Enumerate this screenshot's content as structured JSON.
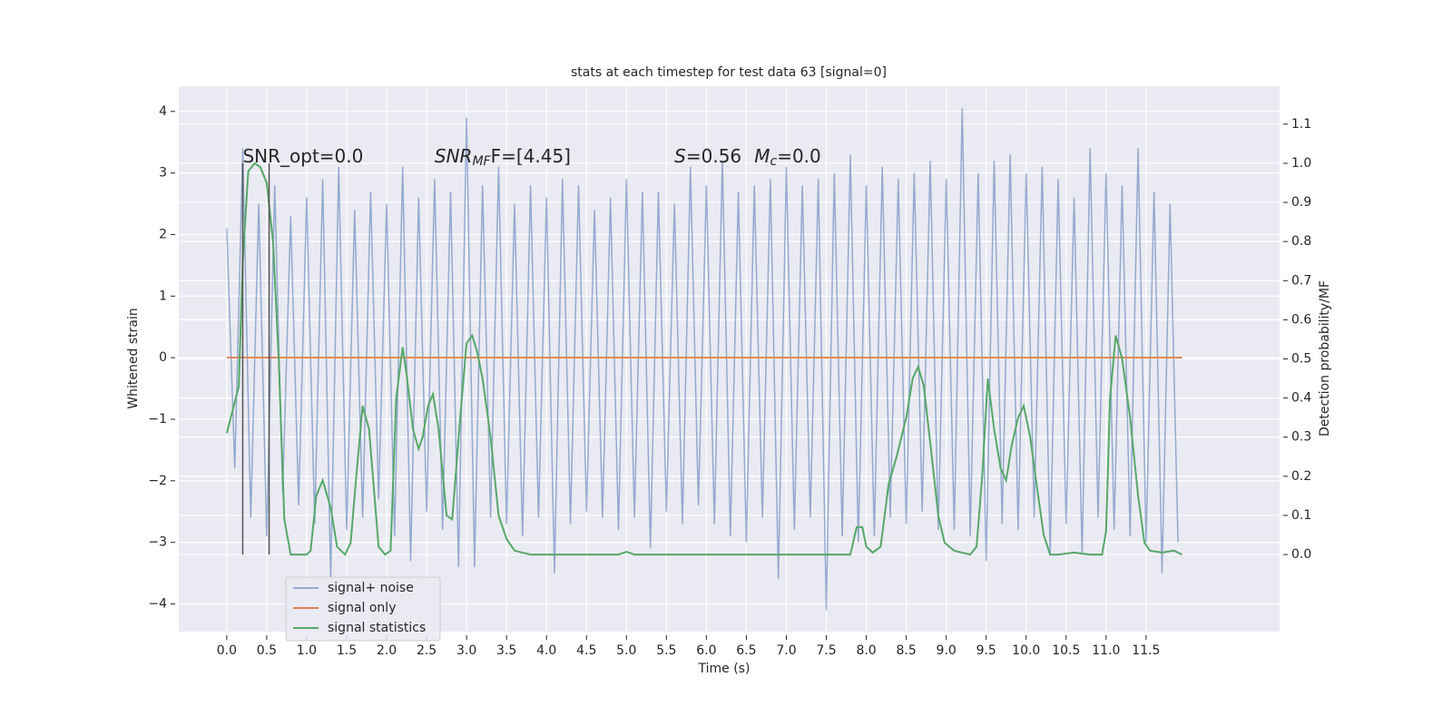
{
  "chart_data": {
    "type": "line",
    "title": "stats at each timestep for test data 63 [signal=0]",
    "xlabel": "Time (s)",
    "ylabel": "Whitened strain",
    "y2label": "Detection probability/MF",
    "xlim": [
      -0.6,
      13.17
    ],
    "ylim": [
      -4.45,
      4.41
    ],
    "y2lim": [
      -0.197,
      1.197
    ],
    "xticks": [
      {
        "value": 0,
        "label": "0.0"
      },
      0.5,
      {
        "value": 1,
        "label": "1.0"
      },
      1.5,
      {
        "value": 2,
        "label": "2.0"
      },
      2.5,
      {
        "value": 3,
        "label": "3.0"
      },
      3.5,
      {
        "value": 4,
        "label": "4.0"
      },
      4.5,
      {
        "value": 5,
        "label": "5.0"
      },
      5.5,
      {
        "value": 6,
        "label": "6.0"
      },
      6.5,
      {
        "value": 7,
        "label": "7.0"
      },
      7.5,
      {
        "value": 8,
        "label": "8.0"
      },
      8.5,
      {
        "value": 9,
        "label": "9.0"
      },
      9.5,
      {
        "value": 10,
        "label": "10.0"
      },
      10.5,
      {
        "value": 11,
        "label": "11.0"
      },
      11.5
    ],
    "yticks": [
      {
        "value": -4,
        "label": "−4"
      },
      {
        "value": -3,
        "label": "−3"
      },
      {
        "value": -2,
        "label": "−2"
      },
      {
        "value": -1,
        "label": "−1"
      },
      0,
      1,
      2,
      3,
      4
    ],
    "y2ticks": [
      {
        "value": 0,
        "label": "0.0"
      },
      0.1,
      0.2,
      0.3,
      0.4,
      0.5,
      0.6,
      0.7,
      0.8,
      0.9,
      {
        "value": 1,
        "label": "1.0"
      },
      1.1
    ],
    "grid": true,
    "legend_loc": "lower left",
    "series": [
      {
        "name": "signal+ noise",
        "color": "#4c72b0",
        "x": [
          0,
          0.1,
          0.2,
          0.3,
          0.4,
          0.5,
          0.6,
          0.7,
          0.8,
          0.9,
          1,
          1.1,
          1.2,
          1.3,
          1.4,
          1.5,
          1.6,
          1.7,
          1.8,
          1.9,
          2,
          2.1,
          2.2,
          2.3,
          2.4,
          2.5,
          2.6,
          2.7,
          2.8,
          2.9,
          3,
          3.1,
          3.2,
          3.3,
          3.4,
          3.5,
          3.6,
          3.7,
          3.8,
          3.9,
          4,
          4.1,
          4.2,
          4.3,
          4.4,
          4.5,
          4.6,
          4.7,
          4.8,
          4.9,
          5,
          5.1,
          5.2,
          5.3,
          5.4,
          5.5,
          5.6,
          5.7,
          5.8,
          5.9,
          6,
          6.1,
          6.2,
          6.3,
          6.4,
          6.5,
          6.6,
          6.7,
          6.8,
          6.9,
          7,
          7.1,
          7.2,
          7.3,
          7.4,
          7.5,
          7.6,
          7.7,
          7.8,
          7.9,
          8,
          8.1,
          8.2,
          8.3,
          8.4,
          8.5,
          8.6,
          8.7,
          8.8,
          8.9,
          9,
          9.1,
          9.2,
          9.3,
          9.4,
          9.5,
          9.6,
          9.7,
          9.8,
          9.9,
          10,
          10.1,
          10.2,
          10.3,
          10.4,
          10.5,
          10.6,
          10.7,
          10.8,
          10.9,
          11,
          11.1,
          11.2,
          11.3,
          11.4,
          11.5,
          11.6,
          11.7,
          11.8,
          11.9
        ],
        "values": [
          2.1,
          -1.8,
          3.4,
          -2.6,
          2.5,
          -2.9,
          2.8,
          -2.2,
          2.3,
          -2.4,
          2.6,
          -2.7,
          2.9,
          -3.6,
          3.1,
          -2.8,
          2.4,
          -2.6,
          2.7,
          -2.3,
          2.5,
          -2.9,
          3.1,
          -3.3,
          2.6,
          -2.5,
          2.9,
          -2.8,
          2.7,
          -3.4,
          3.9,
          -3.4,
          2.8,
          -2.6,
          3.1,
          -2.7,
          2.5,
          -2.9,
          2.8,
          -2.6,
          2.6,
          -3.5,
          2.9,
          -2.7,
          2.8,
          -2.5,
          2.4,
          -2.6,
          2.6,
          -2.8,
          2.9,
          -2.6,
          2.7,
          -3.1,
          2.7,
          -2.5,
          2.5,
          -2.7,
          3.1,
          -2.4,
          2.8,
          -2.7,
          3.2,
          -2.9,
          2.7,
          -3.0,
          2.8,
          -2.6,
          2.9,
          -3.6,
          3.1,
          -2.8,
          2.8,
          -2.6,
          2.9,
          -4.1,
          3.0,
          -2.9,
          3.3,
          -3.0,
          2.8,
          -2.9,
          3.1,
          -2.6,
          2.9,
          -2.7,
          3.0,
          -2.5,
          3.2,
          -2.8,
          2.9,
          -2.8,
          4.05,
          -2.9,
          3.0,
          -3.3,
          3.2,
          -2.7,
          3.3,
          -2.8,
          3.0,
          -2.6,
          3.1,
          -3.2,
          2.9,
          -2.7,
          2.6,
          -3.2,
          3.4,
          -2.6,
          3.0,
          -2.8,
          2.8,
          -2.9,
          3.4,
          -3.0,
          2.7,
          -3.5,
          2.5,
          -3.0
        ]
      },
      {
        "name": "signal only",
        "color": "#dd8452",
        "x": [
          0,
          11.95
        ],
        "values": [
          0,
          0
        ]
      },
      {
        "name": "signal statistics",
        "color": "#55a868",
        "axis": "y2",
        "x": [
          0,
          0.15,
          0.2,
          0.27,
          0.35,
          0.42,
          0.5,
          0.58,
          0.65,
          0.72,
          0.8,
          0.9,
          1,
          1.05,
          1.12,
          1.2,
          1.3,
          1.38,
          1.48,
          1.55,
          1.62,
          1.7,
          1.78,
          1.9,
          1.98,
          2.05,
          2.12,
          2.2,
          2.25,
          2.33,
          2.4,
          2.45,
          2.52,
          2.58,
          2.65,
          2.75,
          2.82,
          2.92,
          3,
          3.07,
          3.13,
          3.2,
          3.3,
          3.4,
          3.5,
          3.6,
          3.8,
          4.2,
          4.9,
          5,
          5.1,
          7.8,
          7.88,
          7.95,
          8,
          8.08,
          8.18,
          8.28,
          8.38,
          8.5,
          8.58,
          8.65,
          8.72,
          8.82,
          8.9,
          8.98,
          9.1,
          9.3,
          9.38,
          9.45,
          9.52,
          9.6,
          9.68,
          9.75,
          9.82,
          9.9,
          9.97,
          10.05,
          10.15,
          10.22,
          10.3,
          10.4,
          10.6,
          10.8,
          10.95,
          11,
          11.05,
          11.12,
          11.2,
          11.3,
          11.4,
          11.48,
          11.55,
          11.7,
          11.85,
          11.95
        ],
        "values": [
          0.31,
          0.43,
          0.75,
          0.98,
          1.0,
          0.99,
          0.95,
          0.8,
          0.5,
          0.09,
          0.0,
          0.0,
          0.0,
          0.01,
          0.15,
          0.19,
          0.12,
          0.02,
          0.0,
          0.03,
          0.2,
          0.38,
          0.32,
          0.02,
          0.0,
          0.01,
          0.4,
          0.53,
          0.46,
          0.32,
          0.27,
          0.3,
          0.38,
          0.41,
          0.32,
          0.1,
          0.09,
          0.35,
          0.54,
          0.56,
          0.52,
          0.45,
          0.3,
          0.1,
          0.04,
          0.01,
          0.0,
          0.0,
          0.0,
          0.007,
          0.0,
          0.0,
          0.07,
          0.07,
          0.02,
          0.005,
          0.02,
          0.18,
          0.25,
          0.35,
          0.45,
          0.48,
          0.43,
          0.25,
          0.1,
          0.03,
          0.01,
          0.0,
          0.02,
          0.2,
          0.45,
          0.32,
          0.22,
          0.19,
          0.28,
          0.35,
          0.38,
          0.3,
          0.15,
          0.05,
          0.0,
          0.0,
          0.005,
          0.0,
          0.0,
          0.06,
          0.4,
          0.56,
          0.5,
          0.35,
          0.15,
          0.03,
          0.01,
          0.005,
          0.01,
          0.0
        ]
      }
    ],
    "vlines": {
      "x": [
        0.2,
        0.53
      ],
      "ymin": 0,
      "ymax": 1,
      "axis": "y2",
      "color": "#555555"
    },
    "annotations": [
      {
        "x": 0.2,
        "y": 1.0,
        "text": "SNR_opt=0.0"
      },
      {
        "x": 2.6,
        "y": 1.0,
        "text": "SNR",
        "sub": "MF",
        "rest": "F=[4.45]"
      },
      {
        "x": 5.6,
        "y": 1.0,
        "text": "S",
        "rest": "=0.56"
      },
      {
        "x": 6.6,
        "y": 1.0,
        "text": "M",
        "sub": "c",
        "rest": "=0.0"
      }
    ]
  }
}
